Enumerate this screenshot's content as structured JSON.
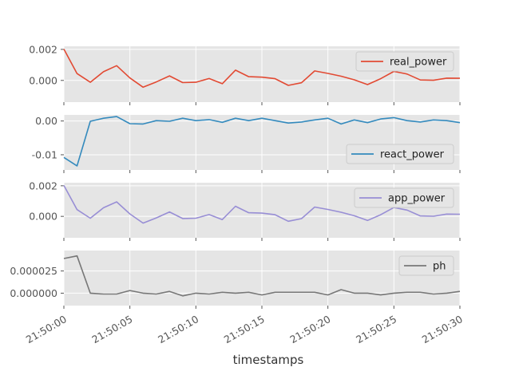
{
  "chart_data": {
    "type": "line",
    "xlabel": "timestamps",
    "x": [
      0,
      1,
      2,
      3,
      4,
      5,
      6,
      7,
      8,
      9,
      10,
      11,
      12,
      13,
      14,
      15,
      16,
      17,
      18,
      19,
      20,
      21,
      22,
      23,
      24,
      25,
      26,
      27,
      28,
      29,
      30
    ],
    "xticks": [
      {
        "value": 0,
        "label": "21:50:00"
      },
      {
        "value": 5,
        "label": "21:50:05"
      },
      {
        "value": 10,
        "label": "21:50:10"
      },
      {
        "value": 15,
        "label": "21:50:15"
      },
      {
        "value": 20,
        "label": "21:50:20"
      },
      {
        "value": 25,
        "label": "21:50:25"
      },
      {
        "value": 30,
        "label": "21:50:30"
      }
    ],
    "xlim": [
      0,
      30
    ],
    "grid": true,
    "panels": [
      {
        "name": "real_power",
        "color": "#e24a33",
        "legend_position": "top-right",
        "ylim": [
          -0.0014,
          0.0022
        ],
        "yticks": [
          {
            "value": 0.002,
            "label": "0.002"
          },
          {
            "value": 0.0,
            "label": "0.000"
          }
        ],
        "values": [
          0.00202,
          0.00044,
          -0.00012,
          0.00056,
          0.00095,
          0.00016,
          -0.00044,
          -0.0001,
          0.00029,
          -0.00014,
          -0.00012,
          0.00012,
          -0.00021,
          0.00066,
          0.00024,
          0.00021,
          0.00011,
          -0.00032,
          -0.00015,
          0.00061,
          0.00045,
          0.00027,
          4e-05,
          -0.00027,
          0.00011,
          0.00058,
          0.00041,
          3e-05,
          1e-05,
          0.00015,
          0.00014
        ]
      },
      {
        "name": "react_power",
        "color": "#348abd",
        "legend_position": "bottom-right",
        "ylim": [
          -0.0145,
          0.0018
        ],
        "yticks": [
          {
            "value": 0.0,
            "label": "0.00"
          },
          {
            "value": -0.01,
            "label": "-0.01"
          }
        ],
        "values": [
          -0.0108,
          -0.0133,
          -0.0001,
          0.0008,
          0.0013,
          -0.0008,
          -0.0009,
          0.0001,
          -0.0001,
          0.0008,
          0.0001,
          0.0004,
          -0.0004,
          0.0008,
          0.0001,
          0.0008,
          0.0001,
          -0.0006,
          -0.0003,
          0.0003,
          0.0008,
          -0.0009,
          0.0003,
          -0.0005,
          0.0006,
          0.001,
          0.0001,
          -0.0003,
          0.0003,
          0.0001,
          -0.0005
        ]
      },
      {
        "name": "app_power",
        "color": "#988ed5",
        "legend_position": "top-right",
        "ylim": [
          -0.0014,
          0.0022
        ],
        "yticks": [
          {
            "value": 0.002,
            "label": "0.002"
          },
          {
            "value": 0.0,
            "label": "0.000"
          }
        ],
        "values": [
          0.00202,
          0.00044,
          -0.00012,
          0.00056,
          0.00095,
          0.00016,
          -0.00044,
          -0.0001,
          0.00029,
          -0.00014,
          -0.00012,
          0.00012,
          -0.00021,
          0.00066,
          0.00024,
          0.00021,
          0.00011,
          -0.00032,
          -0.00015,
          0.00061,
          0.00045,
          0.00027,
          4e-05,
          -0.00027,
          0.00011,
          0.00058,
          0.00041,
          3e-05,
          1e-05,
          0.00015,
          0.00014
        ]
      },
      {
        "name": "ph",
        "color": "#777777",
        "legend_position": "top-right",
        "ylim": [
          -1.4e-05,
          4.8e-05
        ],
        "yticks": [
          {
            "value": 2.5e-05,
            "label": "0.000025"
          },
          {
            "value": 0.0,
            "label": "0.000000"
          }
        ],
        "values": [
          3.9e-05,
          4.2e-05,
          0.0,
          -1e-06,
          -1e-06,
          3e-06,
          0.0,
          -1e-06,
          2e-06,
          -3e-06,
          0.0,
          -1e-06,
          1e-06,
          0.0,
          1e-06,
          -2e-06,
          1e-06,
          1e-06,
          1e-06,
          1e-06,
          -2e-06,
          4e-06,
          0.0,
          0.0,
          -2e-06,
          0.0,
          1e-06,
          1e-06,
          -1e-06,
          0.0,
          2e-06
        ]
      }
    ]
  }
}
